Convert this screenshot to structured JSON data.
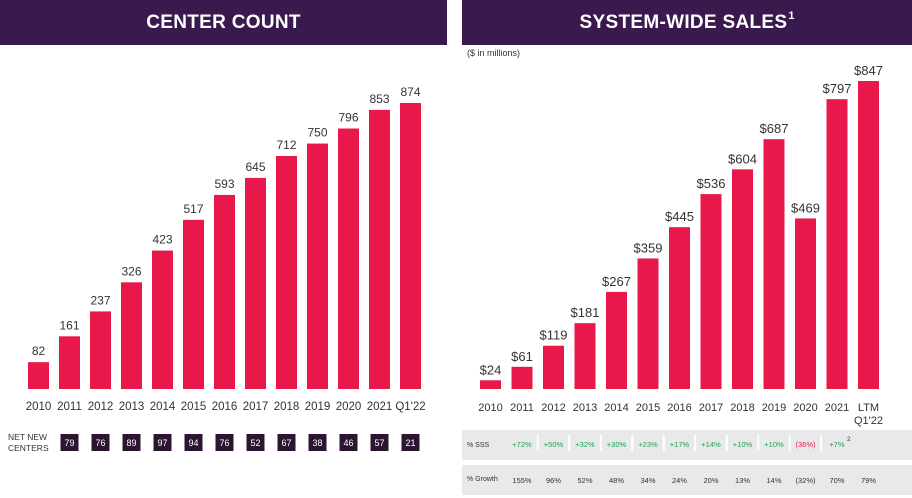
{
  "colors": {
    "bar": "#e8194a",
    "title_bg": "#3a1a4e",
    "box_bg": "#2d1433",
    "positive": "#19a34a",
    "negative": "#e8194a",
    "text": "#333333",
    "strip_bg": "#e9e9ec"
  },
  "left": {
    "title": "CENTER COUNT",
    "net_label_line1": "NET NEW",
    "net_label_line2": "CENTERS",
    "net_new": [
      "79",
      "76",
      "89",
      "97",
      "94",
      "76",
      "52",
      "67",
      "38",
      "46",
      "57",
      "21"
    ]
  },
  "right": {
    "title": "SYSTEM-WIDE SALES",
    "title_sup": "1",
    "subtitle": "($ in millions)",
    "sss_label": "% SSS",
    "sss": [
      "+72%",
      "+50%",
      "+32%",
      "+30%",
      "+23%",
      "+17%",
      "+14%",
      "+10%",
      "+10%",
      "(36%)",
      "+7%"
    ],
    "sss_note": "2",
    "growth_label": "% Growth",
    "growth": [
      "155%",
      "96%",
      "52%",
      "48%",
      "34%",
      "24%",
      "20%",
      "13%",
      "14%",
      "(32%)",
      "70%",
      "79%"
    ]
  },
  "chart_data": [
    {
      "type": "bar",
      "title": "CENTER COUNT",
      "categories": [
        "2010",
        "2011",
        "2012",
        "2013",
        "2014",
        "2015",
        "2016",
        "2017",
        "2018",
        "2019",
        "2020",
        "2021",
        "Q1'22"
      ],
      "values": [
        82,
        161,
        237,
        326,
        423,
        517,
        593,
        645,
        712,
        750,
        796,
        853,
        874
      ],
      "labels": [
        "82",
        "161",
        "237",
        "326",
        "423",
        "517",
        "593",
        "645",
        "712",
        "750",
        "796",
        "853",
        "874"
      ],
      "ylim": [
        0,
        900
      ]
    },
    {
      "type": "bar",
      "title": "SYSTEM-WIDE SALES",
      "ylabel": "($ in millions)",
      "categories": [
        "2010",
        "2011",
        "2012",
        "2013",
        "2014",
        "2015",
        "2016",
        "2017",
        "2018",
        "2019",
        "2020",
        "2021",
        "LTM Q1'22"
      ],
      "values": [
        24,
        61,
        119,
        181,
        267,
        359,
        445,
        536,
        604,
        687,
        469,
        797,
        847
      ],
      "labels": [
        "$24",
        "$61",
        "$119",
        "$181",
        "$267",
        "$359",
        "$445",
        "$536",
        "$604",
        "$687",
        "$469",
        "$797",
        "$847"
      ],
      "ylim": [
        0,
        870
      ]
    }
  ]
}
